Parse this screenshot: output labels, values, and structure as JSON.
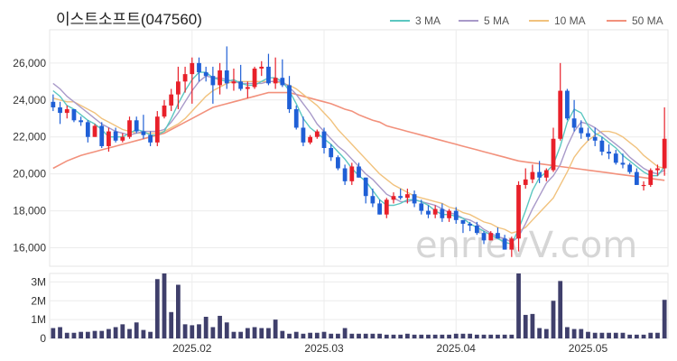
{
  "chart_data": [
    {
      "type": "candlestick",
      "title": "이스트소프트(047560)",
      "legend": [
        {
          "name": "3 MA",
          "color": "#5cc7c1"
        },
        {
          "name": "5 MA",
          "color": "#a99ac9"
        },
        {
          "name": "10 MA",
          "color": "#f1c27d"
        },
        {
          "name": "50 MA",
          "color": "#f2917c"
        }
      ],
      "y_ticks": [
        "16,000",
        "18,000",
        "20,000",
        "22,000",
        "24,000",
        "26,000"
      ],
      "ylim": [
        15000,
        27800
      ],
      "x_ticks": [
        {
          "label": "2025.02",
          "index": 20
        },
        {
          "label": "2025.03",
          "index": 39
        },
        {
          "label": "2025.04",
          "index": 58
        },
        {
          "label": "2025.05",
          "index": 77
        }
      ],
      "up_color": "#e8202a",
      "down_color": "#1f5fd6",
      "candles": [
        [
          23900,
          24300,
          23400,
          23600
        ],
        [
          23600,
          23900,
          22700,
          23300
        ],
        [
          23300,
          23700,
          23000,
          23500
        ],
        [
          23500,
          23500,
          22800,
          22900
        ],
        [
          22900,
          23100,
          22600,
          22800
        ],
        [
          22800,
          22900,
          21700,
          22000
        ],
        [
          22000,
          22700,
          22000,
          22600
        ],
        [
          22600,
          22800,
          21400,
          21500
        ],
        [
          21500,
          22500,
          21200,
          22300
        ],
        [
          22300,
          22500,
          21700,
          21800
        ],
        [
          21800,
          22200,
          21700,
          22000
        ],
        [
          22000,
          23100,
          21900,
          22900
        ],
        [
          22900,
          23100,
          22200,
          22300
        ],
        [
          22300,
          23200,
          21900,
          22100
        ],
        [
          22100,
          22300,
          21500,
          21700
        ],
        [
          21700,
          23400,
          21500,
          23100
        ],
        [
          23100,
          24000,
          23000,
          23700
        ],
        [
          23700,
          24600,
          23400,
          24300
        ],
        [
          24300,
          25800,
          23500,
          25000
        ],
        [
          25000,
          25800,
          24400,
          25400
        ],
        [
          25400,
          26300,
          23800,
          26000
        ],
        [
          26000,
          26300,
          25000,
          25500
        ],
        [
          25500,
          25800,
          25000,
          25300
        ],
        [
          25300,
          25800,
          23800,
          24800
        ],
        [
          24800,
          26000,
          24300,
          25600
        ],
        [
          25600,
          26900,
          24600,
          24900
        ],
        [
          24900,
          25700,
          24500,
          25000
        ],
        [
          25000,
          25900,
          24500,
          24600
        ],
        [
          24600,
          25000,
          24100,
          24700
        ],
        [
          24700,
          25800,
          24600,
          25700
        ],
        [
          25700,
          26100,
          25300,
          25800
        ],
        [
          25800,
          26500,
          24800,
          24900
        ],
        [
          24900,
          26300,
          24600,
          25200
        ],
        [
          25200,
          26200,
          24700,
          24800
        ],
        [
          24800,
          25300,
          23300,
          23500
        ],
        [
          23500,
          23700,
          22400,
          22500
        ],
        [
          22500,
          23100,
          21500,
          21700
        ],
        [
          21700,
          22100,
          21600,
          22000
        ],
        [
          22000,
          22400,
          21900,
          22300
        ],
        [
          22300,
          22500,
          21100,
          21400
        ],
        [
          21400,
          21600,
          20700,
          20900
        ],
        [
          20900,
          21000,
          20200,
          20300
        ],
        [
          20300,
          20500,
          19400,
          19600
        ],
        [
          19600,
          20600,
          19400,
          20400
        ],
        [
          20400,
          20600,
          19800,
          19800
        ],
        [
          19800,
          19800,
          18400,
          18800
        ],
        [
          18800,
          19200,
          18200,
          18400
        ],
        [
          18400,
          18600,
          17800,
          17800
        ],
        [
          17800,
          18700,
          17600,
          18600
        ],
        [
          18600,
          19000,
          18400,
          18800
        ],
        [
          18800,
          19200,
          18600,
          18700
        ],
        [
          18700,
          19200,
          18400,
          18900
        ],
        [
          18900,
          19100,
          18200,
          18400
        ],
        [
          18400,
          18600,
          17800,
          18000
        ],
        [
          18000,
          18300,
          17600,
          17800
        ],
        [
          17800,
          18300,
          17600,
          18100
        ],
        [
          18100,
          18400,
          17400,
          17600
        ],
        [
          17600,
          18100,
          17400,
          18000
        ],
        [
          18000,
          18200,
          17300,
          17500
        ],
        [
          17500,
          17500,
          16800,
          17300
        ],
        [
          17300,
          17400,
          16900,
          17200
        ],
        [
          17200,
          17400,
          16700,
          16800
        ],
        [
          16800,
          16900,
          16200,
          16400
        ],
        [
          16400,
          16900,
          16400,
          16800
        ],
        [
          16800,
          17100,
          16500,
          16500
        ],
        [
          16500,
          16700,
          15900,
          15900
        ],
        [
          15900,
          16600,
          15500,
          16500
        ],
        [
          16500,
          19600,
          15800,
          19400
        ],
        [
          19400,
          20300,
          19200,
          19700
        ],
        [
          19700,
          20500,
          19500,
          20100
        ],
        [
          20100,
          20700,
          19500,
          19800
        ],
        [
          19800,
          20300,
          19600,
          20200
        ],
        [
          20200,
          22500,
          20100,
          21900
        ],
        [
          21900,
          26000,
          21800,
          24500
        ],
        [
          24500,
          24600,
          22900,
          23000
        ],
        [
          23000,
          24000,
          22300,
          22500
        ],
        [
          22500,
          22900,
          21900,
          22200
        ],
        [
          22200,
          22500,
          21800,
          22000
        ],
        [
          22000,
          22500,
          21500,
          21800
        ],
        [
          21800,
          22000,
          21000,
          21200
        ],
        [
          21200,
          21600,
          20800,
          21100
        ],
        [
          21100,
          21300,
          20500,
          20600
        ],
        [
          20600,
          21100,
          20300,
          20500
        ],
        [
          20500,
          20600,
          20000,
          20100
        ],
        [
          20100,
          20300,
          19400,
          19400
        ],
        [
          19400,
          19600,
          19100,
          19400
        ],
        [
          19400,
          20300,
          19300,
          20200
        ],
        [
          20200,
          20500,
          19900,
          20300
        ],
        [
          20300,
          23600,
          19900,
          21900
        ]
      ],
      "volume": [
        0.55,
        0.6,
        0.3,
        0.3,
        0.35,
        0.35,
        0.4,
        0.4,
        0.5,
        0.6,
        0.75,
        0.5,
        0.85,
        0.45,
        0.35,
        3.15,
        3.45,
        1.4,
        2.85,
        0.75,
        0.7,
        0.75,
        1.15,
        0.6,
        1.2,
        0.85,
        0.35,
        0.35,
        0.55,
        0.6,
        0.55,
        0.55,
        1.0,
        0.4,
        0.25,
        0.35,
        0.25,
        0.3,
        0.3,
        0.35,
        0.25,
        0.25,
        0.55,
        0.25,
        0.25,
        0.25,
        0.25,
        0.25,
        0.2,
        0.2,
        0.2,
        0.25,
        0.2,
        0.2,
        0.2,
        0.2,
        0.2,
        0.2,
        0.25,
        0.25,
        0.25,
        0.2,
        0.2,
        0.2,
        0.2,
        0.2,
        0.2,
        3.45,
        1.25,
        1.3,
        0.55,
        0.5,
        2.0,
        3.05,
        0.6,
        0.5,
        0.5,
        0.35,
        0.3,
        0.3,
        0.3,
        0.3,
        0.3,
        0.2,
        0.2,
        0.2,
        0.3,
        0.3,
        2.05
      ],
      "ma3": [
        24500,
        24200,
        23700,
        23500,
        23200,
        22900,
        22700,
        22400,
        22000,
        22000,
        22000,
        22200,
        22400,
        22300,
        22100,
        22100,
        22300,
        23000,
        23800,
        24500,
        25100,
        25500,
        25500,
        25200,
        25100,
        25000,
        25100,
        24900,
        24800,
        24800,
        25000,
        25200,
        25200,
        25000,
        24500,
        23800,
        23000,
        22500,
        22200,
        21900,
        21600,
        21200,
        20800,
        20300,
        19900,
        19600,
        19100,
        18600,
        18300,
        18300,
        18400,
        18600,
        18600,
        18500,
        18300,
        18000,
        17800,
        17800,
        17700,
        17600,
        17300,
        17100,
        16900,
        16700,
        16500,
        16300,
        16200,
        17000,
        18000,
        19100,
        19800,
        20100,
        20500,
        21500,
        22800,
        23500,
        23300,
        22600,
        22200,
        22000,
        21700,
        21400,
        21000,
        20700,
        20400,
        20100,
        19900,
        19900,
        20400
      ],
      "ma5": [
        24900,
        24600,
        24200,
        23900,
        23600,
        23300,
        23000,
        22700,
        22500,
        22300,
        22200,
        22100,
        22200,
        22300,
        22300,
        22300,
        22400,
        22800,
        23300,
        23900,
        24500,
        25000,
        25300,
        25200,
        25200,
        25100,
        25000,
        24900,
        24900,
        24900,
        24900,
        25000,
        25000,
        25000,
        24700,
        24300,
        23800,
        23300,
        22700,
        22300,
        21900,
        21500,
        21200,
        20800,
        20400,
        20000,
        19700,
        19300,
        18900,
        18700,
        18500,
        18500,
        18600,
        18500,
        18400,
        18300,
        18100,
        17900,
        17800,
        17600,
        17500,
        17300,
        17000,
        16800,
        16600,
        16500,
        16300,
        16600,
        17300,
        18100,
        18800,
        19500,
        19900,
        20500,
        21500,
        22300,
        22800,
        22700,
        22500,
        22200,
        21900,
        21600,
        21300,
        20900,
        20600,
        20300,
        20100,
        20000,
        20200
      ],
      "ma10": [
        24100,
        24000,
        23900,
        23900,
        23700,
        23500,
        23300,
        23000,
        22800,
        22600,
        22400,
        22300,
        22200,
        22200,
        22200,
        22200,
        22300,
        22500,
        22700,
        23000,
        23400,
        23800,
        24200,
        24500,
        24700,
        24900,
        25000,
        25000,
        25000,
        25000,
        25000,
        25000,
        25000,
        24900,
        24800,
        24600,
        24300,
        24000,
        23700,
        23300,
        22900,
        22400,
        22000,
        21600,
        21200,
        20800,
        20400,
        20000,
        19700,
        19400,
        19200,
        19000,
        18800,
        18700,
        18600,
        18500,
        18400,
        18200,
        18100,
        17900,
        17800,
        17600,
        17400,
        17300,
        17100,
        17000,
        16800,
        16900,
        17100,
        17500,
        17900,
        18300,
        18700,
        19400,
        20100,
        20900,
        21400,
        21800,
        22100,
        22300,
        22300,
        22200,
        22000,
        21700,
        21400,
        21000,
        20700,
        20400,
        20300
      ],
      "ma50": [
        20300,
        20500,
        20700,
        20850,
        21000,
        21100,
        21200,
        21300,
        21400,
        21500,
        21600,
        21700,
        21800,
        21900,
        22000,
        22100,
        22200,
        22400,
        22600,
        22800,
        23000,
        23200,
        23400,
        23600,
        23700,
        23800,
        23900,
        24000,
        24100,
        24200,
        24300,
        24400,
        24400,
        24400,
        24400,
        24300,
        24200,
        24100,
        24000,
        23900,
        23800,
        23650,
        23500,
        23400,
        23200,
        23050,
        22900,
        22800,
        22600,
        22500,
        22400,
        22300,
        22200,
        22100,
        22000,
        21900,
        21800,
        21700,
        21600,
        21500,
        21400,
        21300,
        21200,
        21100,
        21000,
        20900,
        20800,
        20700,
        20650,
        20600,
        20550,
        20500,
        20450,
        20400,
        20350,
        20300,
        20250,
        20200,
        20150,
        20100,
        20050,
        20000,
        19950,
        19900,
        19850,
        19800,
        19750,
        19700,
        19650
      ],
      "volume_ticks": [
        "0",
        "1M",
        "2M",
        "3M"
      ],
      "volume_ylim": [
        0,
        3.45
      ],
      "watermark": "enrievV.com"
    }
  ]
}
